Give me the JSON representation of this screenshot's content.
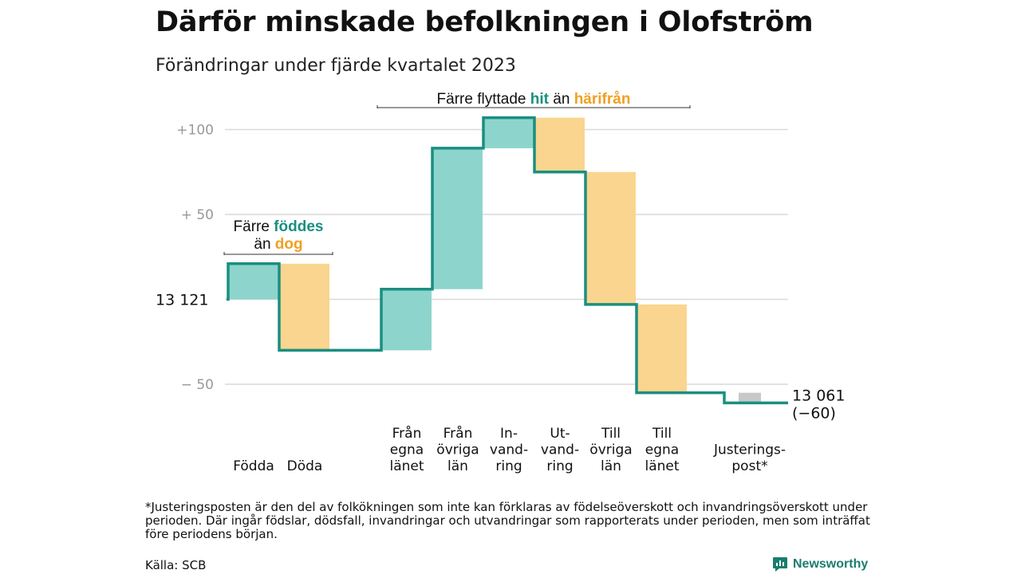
{
  "header": {
    "title": "Därför minskade befolkningen i Olofström",
    "subtitle": "Förändringar under fjärde kvartalet 2023"
  },
  "colors": {
    "increase": "#8dd5cc",
    "decrease": "#f9d58f",
    "adjustment": "#c8c8c8",
    "line": "#1a8f80",
    "grid": "#d9d9d9",
    "teal_text": "#1a8f80",
    "orange_text": "#f0a022",
    "tick_text": "#999999"
  },
  "chart_data": {
    "type": "waterfall",
    "start": {
      "label": "13  121",
      "value": 13121
    },
    "end": {
      "label": "13 061",
      "change_label": "(−60)",
      "value": 13061
    },
    "y_ticks": [
      {
        "value": 100,
        "label": "+100"
      },
      {
        "value": 50,
        "label": "+  50"
      },
      {
        "value": -50,
        "label": "−  50"
      }
    ],
    "ylim": [
      -58,
      110
    ],
    "grid": true,
    "steps": [
      {
        "label": [
          "Födda"
        ],
        "change": 21,
        "kind": "increase"
      },
      {
        "label": [
          "Döda"
        ],
        "change": -51,
        "kind": "decrease"
      },
      {
        "label": [
          "Från",
          "egna",
          "länet"
        ],
        "change": 36,
        "kind": "increase"
      },
      {
        "label": [
          "Från",
          "övriga",
          "län"
        ],
        "change": 83,
        "kind": "increase"
      },
      {
        "label": [
          "In-",
          "vand-",
          "ring"
        ],
        "change": 18,
        "kind": "increase"
      },
      {
        "label": [
          "Ut-",
          "vand-",
          "ring"
        ],
        "change": -32,
        "kind": "decrease"
      },
      {
        "label": [
          "Till",
          "övriga",
          "län"
        ],
        "change": -78,
        "kind": "decrease"
      },
      {
        "label": [
          "Till",
          "egna",
          "länet"
        ],
        "change": -52,
        "kind": "decrease"
      },
      {
        "label": [
          "Justerings-",
          "post*"
        ],
        "change": -6,
        "kind": "adjustment"
      }
    ],
    "annotations": [
      {
        "lines": [
          [
            {
              "text": "Färre ",
              "color": "plain"
            },
            {
              "text": "föddes",
              "color": "teal"
            }
          ],
          [
            {
              "text": "än ",
              "color": "plain"
            },
            {
              "text": "dog",
              "color": "orange"
            }
          ]
        ],
        "span_steps": [
          0,
          1
        ]
      },
      {
        "lines": [
          [
            {
              "text": "Färre flyttade ",
              "color": "plain"
            },
            {
              "text": "hit",
              "color": "teal"
            },
            {
              "text": " än ",
              "color": "plain"
            },
            {
              "text": "härifrån",
              "color": "orange"
            }
          ]
        ],
        "span_steps": [
          2,
          7
        ]
      }
    ]
  },
  "footnote": "*Justeringsposten är den del av folkökningen som inte kan förklaras av födelseöverskott och invandringsöverskott under perioden. Där ingår födslar, dödsfall, invandringar och utvandringar som rapporterats under perioden, men som inträffat före periodens början.",
  "source": "Källa: SCB",
  "brand": {
    "name": "Newsworthy",
    "icon": "newsworthy-logo-icon"
  }
}
